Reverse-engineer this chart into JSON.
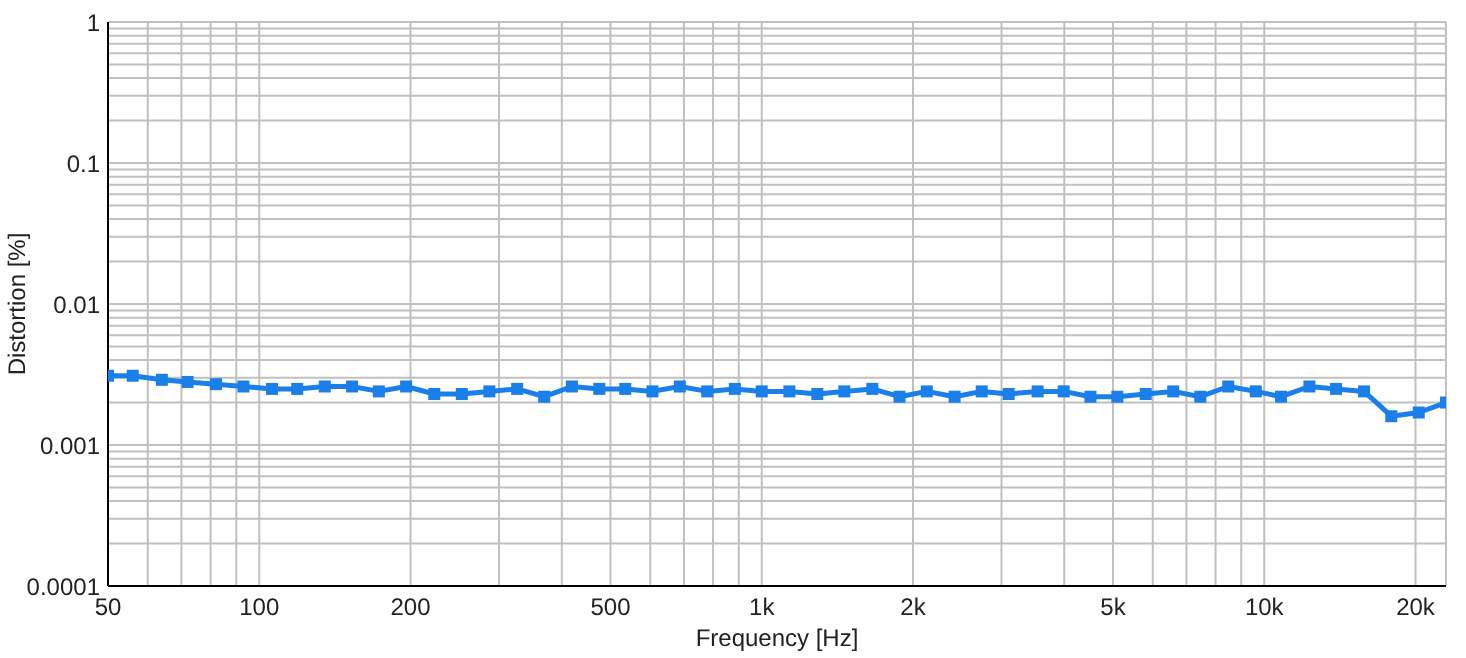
{
  "chart_data": {
    "type": "line",
    "xlabel": "Frequency [Hz]",
    "ylabel": "Distortion [%]",
    "log": "xy",
    "grid": true,
    "legend": false,
    "marker": "square",
    "line_style": "solid",
    "x": [
      50,
      56,
      64,
      72,
      82,
      93,
      106,
      119,
      135,
      153,
      173,
      196,
      223,
      253,
      287,
      326,
      369,
      419,
      475,
      535,
      606,
      687,
      779,
      884,
      1000,
      1135,
      1290,
      1460,
      1660,
      1880,
      2130,
      2420,
      2740,
      3100,
      3540,
      3990,
      4510,
      5100,
      5810,
      6590,
      7460,
      8480,
      9620,
      10800,
      12300,
      13900,
      15800,
      17900,
      20300,
      23000
    ],
    "series": [
      {
        "color": "#1a7fe8",
        "values": [
          0.0031,
          0.0031,
          0.0029,
          0.0028,
          0.0027,
          0.0026,
          0.0025,
          0.0025,
          0.0026,
          0.0026,
          0.0024,
          0.0026,
          0.0023,
          0.0023,
          0.0024,
          0.0025,
          0.0022,
          0.0026,
          0.0025,
          0.0025,
          0.0024,
          0.0026,
          0.0024,
          0.0025,
          0.0024,
          0.0024,
          0.0023,
          0.0024,
          0.0025,
          0.0022,
          0.0024,
          0.0022,
          0.0024,
          0.0023,
          0.0024,
          0.0024,
          0.0022,
          0.0022,
          0.0023,
          0.0024,
          0.0022,
          0.0026,
          0.0024,
          0.0022,
          0.0026,
          0.0025,
          0.0024,
          0.0016,
          0.0017,
          0.002
        ]
      }
    ],
    "xlim": [
      50,
      23000
    ],
    "xticks": [
      50,
      {
        "value": 60,
        "label": null
      },
      {
        "value": 70,
        "label": null
      },
      {
        "value": 80,
        "label": null
      },
      {
        "value": 90,
        "label": null
      },
      100,
      200,
      {
        "value": 300,
        "label": null
      },
      {
        "value": 400,
        "label": null
      },
      500,
      {
        "value": 600,
        "label": null
      },
      {
        "value": 700,
        "label": null
      },
      {
        "value": 800,
        "label": null
      },
      {
        "value": 900,
        "label": null
      },
      {
        "value": 1000,
        "label": "1k"
      },
      {
        "value": 2000,
        "label": "2k"
      },
      {
        "value": 3000,
        "label": null
      },
      {
        "value": 4000,
        "label": null
      },
      {
        "value": 5000,
        "label": "5k"
      },
      {
        "value": 6000,
        "label": null
      },
      {
        "value": 7000,
        "label": null
      },
      {
        "value": 8000,
        "label": null
      },
      {
        "value": 9000,
        "label": null
      },
      {
        "value": 10000,
        "label": "10k"
      },
      {
        "value": 20000,
        "label": "20k"
      }
    ],
    "ylim": [
      0.0001,
      1
    ],
    "yticks": [
      0.0001,
      {
        "value": 0.0002,
        "label": null
      },
      {
        "value": 0.0003,
        "label": null
      },
      {
        "value": 0.0004,
        "label": null
      },
      {
        "value": 0.0005,
        "label": null
      },
      {
        "value": 0.0006,
        "label": null
      },
      {
        "value": 0.0007,
        "label": null
      },
      {
        "value": 0.0008,
        "label": null
      },
      {
        "value": 0.0009,
        "label": null
      },
      0.001,
      {
        "value": 0.002,
        "label": null
      },
      {
        "value": 0.003,
        "label": null
      },
      {
        "value": 0.004,
        "label": null
      },
      {
        "value": 0.005,
        "label": null
      },
      {
        "value": 0.006,
        "label": null
      },
      {
        "value": 0.007,
        "label": null
      },
      {
        "value": 0.008,
        "label": null
      },
      {
        "value": 0.009,
        "label": null
      },
      0.01,
      {
        "value": 0.02,
        "label": null
      },
      {
        "value": 0.03,
        "label": null
      },
      {
        "value": 0.04,
        "label": null
      },
      {
        "value": 0.05,
        "label": null
      },
      {
        "value": 0.06,
        "label": null
      },
      {
        "value": 0.07,
        "label": null
      },
      {
        "value": 0.08,
        "label": null
      },
      {
        "value": 0.09,
        "label": null
      },
      0.1,
      {
        "value": 0.2,
        "label": null
      },
      {
        "value": 0.3,
        "label": null
      },
      {
        "value": 0.4,
        "label": null
      },
      {
        "value": 0.5,
        "label": null
      },
      {
        "value": 0.6,
        "label": null
      },
      {
        "value": 0.7,
        "label": null
      },
      {
        "value": 0.8,
        "label": null
      },
      {
        "value": 0.9,
        "label": null
      },
      1
    ]
  }
}
